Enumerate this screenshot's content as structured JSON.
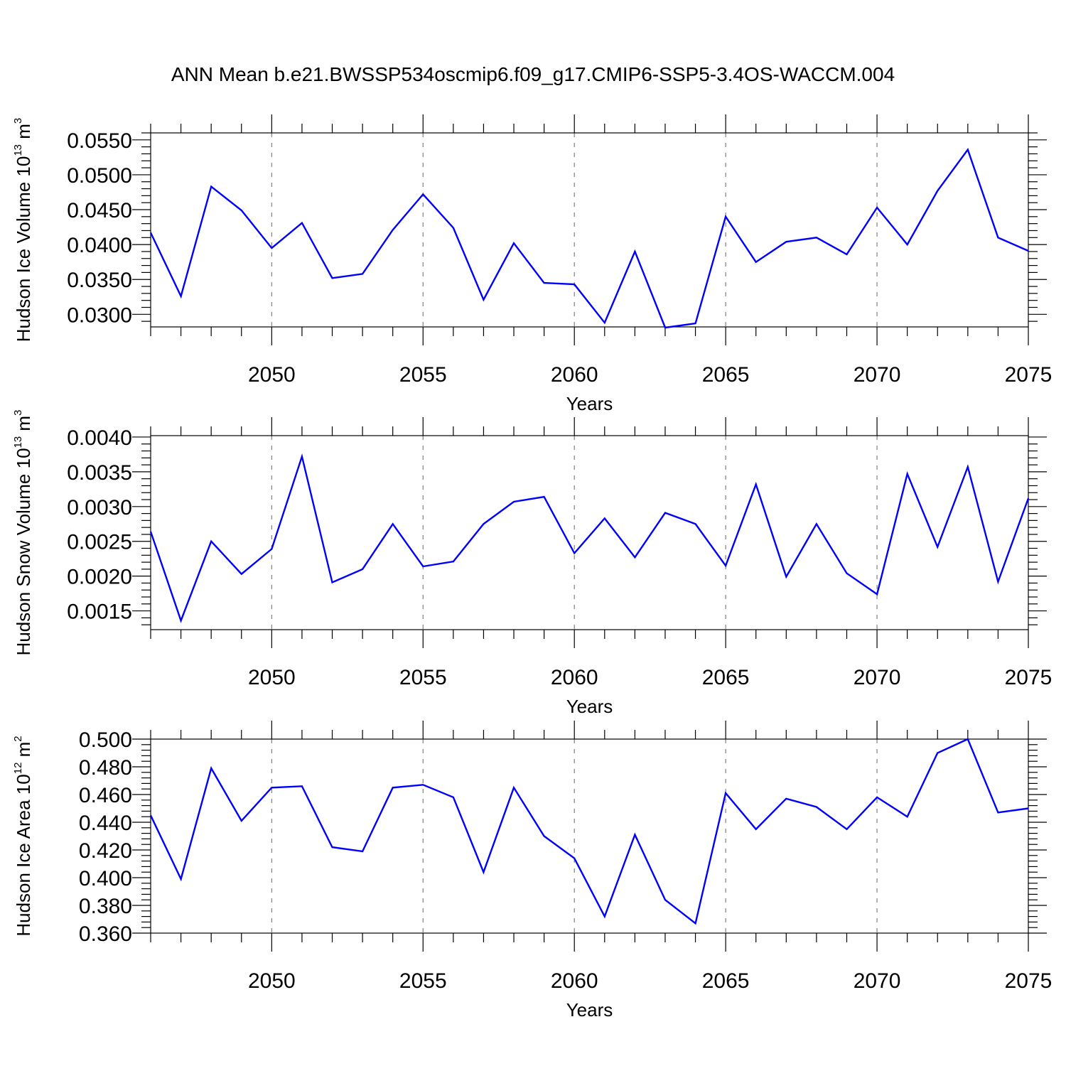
{
  "title": "ANN Mean b.e21.BWSSP534oscmip6.f09_g17.CMIP6-SSP5-3.4OS-WACCM.004",
  "colors": {
    "line": "#0000ff",
    "grid": "#808080",
    "axis": "#000000"
  },
  "chart_data": [
    {
      "type": "line",
      "ylabel": {
        "main": "Hudson Ice Volume 10",
        "sup": "13",
        "unit": " m",
        "unit_sup": "3"
      },
      "xlabel": "Years",
      "xlim": [
        2046,
        2075
      ],
      "ylim": [
        0.0282,
        0.056
      ],
      "xticks": [
        2050,
        2055,
        2060,
        2065,
        2070,
        2075
      ],
      "xtick_labels": [
        "2050",
        "2055",
        "2060",
        "2065",
        "2070",
        "2075"
      ],
      "yticks": [
        0.03,
        0.035,
        0.04,
        0.045,
        0.05,
        0.055
      ],
      "ytick_labels": [
        "0.0300",
        "0.0350",
        "0.0400",
        "0.0450",
        "0.0500",
        "0.0550"
      ],
      "grid": "vertical-dashed",
      "x": [
        2046,
        2047,
        2048,
        2049,
        2050,
        2051,
        2052,
        2053,
        2054,
        2055,
        2056,
        2057,
        2058,
        2059,
        2060,
        2061,
        2062,
        2063,
        2064,
        2065,
        2066,
        2067,
        2068,
        2069,
        2070,
        2071,
        2072,
        2073,
        2074,
        2075
      ],
      "values": [
        0.0417,
        0.0326,
        0.0483,
        0.0449,
        0.0395,
        0.0431,
        0.0352,
        0.0358,
        0.0421,
        0.0472,
        0.0424,
        0.0321,
        0.0402,
        0.0345,
        0.0343,
        0.0288,
        0.039,
        0.0281,
        0.0287,
        0.044,
        0.0375,
        0.0404,
        0.041,
        0.0386,
        0.0453,
        0.04,
        0.0477,
        0.0536,
        0.041,
        0.0391
      ]
    },
    {
      "type": "line",
      "ylabel": {
        "main": "Hudson Snow Volume 10",
        "sup": "13",
        "unit": " m",
        "unit_sup": "3"
      },
      "xlabel": "Years",
      "xlim": [
        2046,
        2075
      ],
      "ylim": [
        0.00123,
        0.00402
      ],
      "xticks": [
        2050,
        2055,
        2060,
        2065,
        2070,
        2075
      ],
      "xtick_labels": [
        "2050",
        "2055",
        "2060",
        "2065",
        "2070",
        "2075"
      ],
      "yticks": [
        0.0015,
        0.002,
        0.0025,
        0.003,
        0.0035,
        0.004
      ],
      "ytick_labels": [
        "0.0015",
        "0.0020",
        "0.0025",
        "0.0030",
        "0.0035",
        "0.0040"
      ],
      "grid": "vertical-dashed",
      "x": [
        2046,
        2047,
        2048,
        2049,
        2050,
        2051,
        2052,
        2053,
        2054,
        2055,
        2056,
        2057,
        2058,
        2059,
        2060,
        2061,
        2062,
        2063,
        2064,
        2065,
        2066,
        2067,
        2068,
        2069,
        2070,
        2071,
        2072,
        2073,
        2074,
        2075
      ],
      "values": [
        0.00264,
        0.00136,
        0.0025,
        0.00203,
        0.00239,
        0.00372,
        0.00191,
        0.0021,
        0.00275,
        0.00214,
        0.00221,
        0.00275,
        0.00307,
        0.00314,
        0.00233,
        0.00283,
        0.00227,
        0.00291,
        0.00275,
        0.00215,
        0.00332,
        0.00199,
        0.00275,
        0.00204,
        0.00174,
        0.00347,
        0.00242,
        0.00357,
        0.00192,
        0.00312
      ]
    },
    {
      "type": "line",
      "ylabel": {
        "main": "Hudson Ice Area 10",
        "sup": "12",
        "unit": " m",
        "unit_sup": "2"
      },
      "xlabel": "Years",
      "xlim": [
        2046,
        2075
      ],
      "ylim": [
        0.36,
        0.5
      ],
      "xticks": [
        2050,
        2055,
        2060,
        2065,
        2070,
        2075
      ],
      "xtick_labels": [
        "2050",
        "2055",
        "2060",
        "2065",
        "2070",
        "2075"
      ],
      "yticks": [
        0.36,
        0.38,
        0.4,
        0.42,
        0.44,
        0.46,
        0.48,
        0.5
      ],
      "ytick_labels": [
        "0.360",
        "0.380",
        "0.400",
        "0.420",
        "0.440",
        "0.460",
        "0.480",
        "0.500"
      ],
      "grid": "vertical-dashed",
      "x": [
        2046,
        2047,
        2048,
        2049,
        2050,
        2051,
        2052,
        2053,
        2054,
        2055,
        2056,
        2057,
        2058,
        2059,
        2060,
        2061,
        2062,
        2063,
        2064,
        2065,
        2066,
        2067,
        2068,
        2069,
        2070,
        2071,
        2072,
        2073,
        2074,
        2075
      ],
      "values": [
        0.445,
        0.399,
        0.479,
        0.441,
        0.465,
        0.466,
        0.422,
        0.419,
        0.465,
        0.467,
        0.458,
        0.404,
        0.465,
        0.43,
        0.414,
        0.372,
        0.431,
        0.384,
        0.367,
        0.461,
        0.435,
        0.457,
        0.451,
        0.435,
        0.458,
        0.444,
        0.49,
        0.5,
        0.447,
        0.45
      ]
    }
  ]
}
